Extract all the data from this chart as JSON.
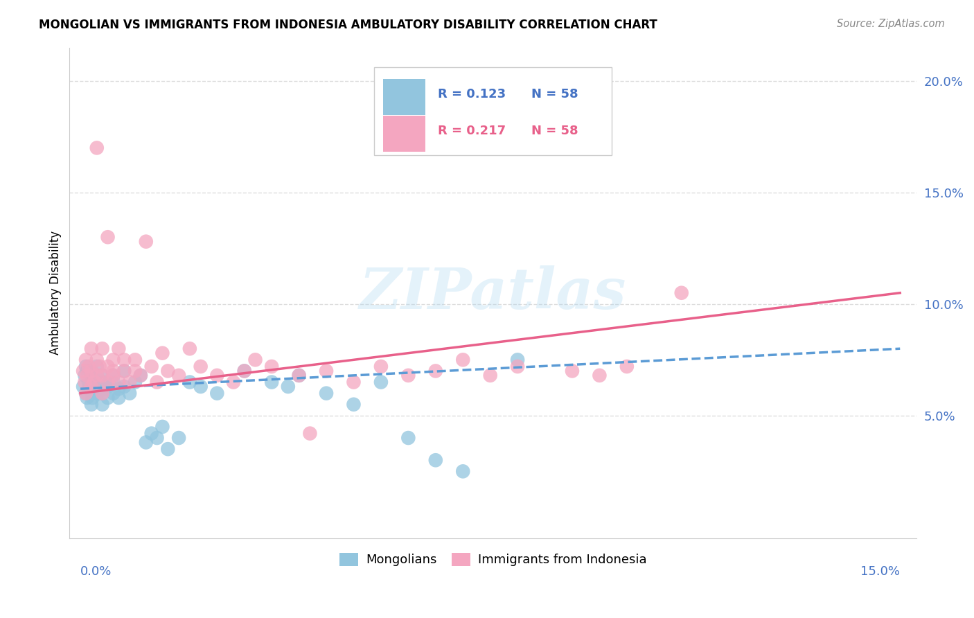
{
  "title": "MONGOLIAN VS IMMIGRANTS FROM INDONESIA AMBULATORY DISABILITY CORRELATION CHART",
  "source": "Source: ZipAtlas.com",
  "ylabel": "Ambulatory Disability",
  "yticks": [
    0.05,
    0.1,
    0.15,
    0.2
  ],
  "ytick_labels": [
    "5.0%",
    "10.0%",
    "15.0%",
    "20.0%"
  ],
  "xlim": [
    -0.002,
    0.153
  ],
  "ylim": [
    -0.005,
    0.215
  ],
  "legend_r1": "R = 0.123",
  "legend_n1": "N = 58",
  "legend_r2": "R = 0.217",
  "legend_n2": "N = 58",
  "legend_label1": "Mongolians",
  "legend_label2": "Immigrants from Indonesia",
  "color_blue": "#92c5de",
  "color_pink": "#f4a6c0",
  "color_blue_line": "#5b9bd5",
  "color_pink_line": "#e8608a",
  "color_blue_text": "#4472c4",
  "color_pink_text": "#e8608a",
  "watermark": "ZIPatlas",
  "background_color": "#ffffff",
  "grid_color": "#dddddd",
  "mongolian_x": [
    0.0005,
    0.0008,
    0.001,
    0.001,
    0.0012,
    0.0012,
    0.0015,
    0.0015,
    0.002,
    0.002,
    0.002,
    0.002,
    0.0022,
    0.0025,
    0.003,
    0.003,
    0.003,
    0.003,
    0.0032,
    0.0035,
    0.004,
    0.004,
    0.004,
    0.004,
    0.0042,
    0.005,
    0.005,
    0.005,
    0.006,
    0.006,
    0.006,
    0.007,
    0.007,
    0.008,
    0.008,
    0.009,
    0.01,
    0.011,
    0.012,
    0.013,
    0.014,
    0.015,
    0.016,
    0.018,
    0.02,
    0.022,
    0.025,
    0.03,
    0.035,
    0.038,
    0.04,
    0.045,
    0.05,
    0.055,
    0.06,
    0.065,
    0.07,
    0.08
  ],
  "mongolian_y": [
    0.063,
    0.068,
    0.06,
    0.072,
    0.058,
    0.07,
    0.065,
    0.062,
    0.055,
    0.063,
    0.067,
    0.07,
    0.058,
    0.065,
    0.06,
    0.065,
    0.068,
    0.072,
    0.06,
    0.063,
    0.055,
    0.06,
    0.065,
    0.068,
    0.062,
    0.058,
    0.065,
    0.063,
    0.06,
    0.065,
    0.068,
    0.062,
    0.058,
    0.063,
    0.07,
    0.06,
    0.065,
    0.068,
    0.038,
    0.042,
    0.04,
    0.045,
    0.035,
    0.04,
    0.065,
    0.063,
    0.06,
    0.07,
    0.065,
    0.063,
    0.068,
    0.06,
    0.055,
    0.065,
    0.04,
    0.03,
    0.025,
    0.075
  ],
  "indonesia_x": [
    0.0005,
    0.0008,
    0.001,
    0.001,
    0.0012,
    0.0015,
    0.002,
    0.002,
    0.002,
    0.0025,
    0.003,
    0.003,
    0.003,
    0.0035,
    0.004,
    0.004,
    0.004,
    0.005,
    0.005,
    0.005,
    0.006,
    0.006,
    0.006,
    0.007,
    0.007,
    0.008,
    0.008,
    0.009,
    0.01,
    0.01,
    0.011,
    0.012,
    0.013,
    0.014,
    0.015,
    0.016,
    0.018,
    0.02,
    0.022,
    0.025,
    0.028,
    0.03,
    0.032,
    0.035,
    0.04,
    0.042,
    0.045,
    0.05,
    0.055,
    0.06,
    0.065,
    0.07,
    0.075,
    0.08,
    0.09,
    0.095,
    0.1,
    0.11
  ],
  "indonesia_y": [
    0.07,
    0.065,
    0.06,
    0.075,
    0.068,
    0.072,
    0.063,
    0.07,
    0.08,
    0.065,
    0.068,
    0.075,
    0.17,
    0.072,
    0.06,
    0.068,
    0.08,
    0.065,
    0.072,
    0.13,
    0.07,
    0.075,
    0.068,
    0.065,
    0.08,
    0.07,
    0.075,
    0.065,
    0.07,
    0.075,
    0.068,
    0.128,
    0.072,
    0.065,
    0.078,
    0.07,
    0.068,
    0.08,
    0.072,
    0.068,
    0.065,
    0.07,
    0.075,
    0.072,
    0.068,
    0.042,
    0.07,
    0.065,
    0.072,
    0.068,
    0.07,
    0.075,
    0.068,
    0.072,
    0.07,
    0.068,
    0.072,
    0.105
  ]
}
